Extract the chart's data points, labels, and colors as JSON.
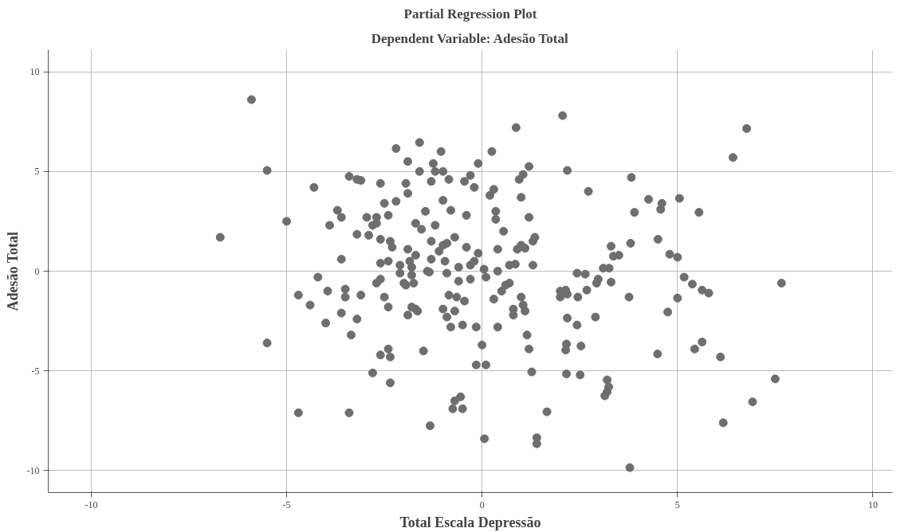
{
  "chart_data": {
    "type": "scatter",
    "title": "Partial Regression Plot",
    "subtitle": "Dependent Variable: Adesão Total",
    "xlabel": "Total Escala Depressão",
    "ylabel": "Adesão Total",
    "xlim": [
      -11.1,
      10.5
    ],
    "ylim": [
      -11.1,
      11.1
    ],
    "xticks": [
      -10,
      -5,
      0,
      5,
      10
    ],
    "yticks": [
      -10,
      -5,
      0,
      5,
      10
    ],
    "grid": true,
    "marker": "circle",
    "series": [
      {
        "color": "#6e6e6e",
        "x": [
          -6.7,
          -5.9,
          -5.5,
          -5.5,
          -5.0,
          -4.7,
          -4.7,
          -4.4,
          -4.3,
          -4.2,
          -4.0,
          -3.95,
          -3.9,
          -3.7,
          -3.6,
          -3.6,
          -3.6,
          -3.5,
          -3.5,
          -3.4,
          -3.4,
          -3.35,
          -3.2,
          -3.2,
          -3.1,
          -3.2,
          -3.1,
          -2.95,
          -2.9,
          -2.8,
          -2.8,
          -2.7,
          -2.7,
          -2.7,
          -2.6,
          -2.6,
          -2.6,
          -2.6,
          -2.6,
          -2.5,
          -2.5,
          -2.4,
          -2.4,
          -2.4,
          -2.4,
          -2.35,
          -2.35,
          -2.35,
          -2.3,
          -2.2,
          -2.2,
          -2.1,
          -2.1,
          -2.0,
          -1.95,
          -1.95,
          -1.9,
          -1.9,
          -1.9,
          -1.9,
          -1.85,
          -1.8,
          -1.8,
          -1.8,
          -1.75,
          -1.7,
          -1.7,
          -1.7,
          -1.65,
          -1.6,
          -1.6,
          -1.55,
          -1.5,
          -1.45,
          -1.4,
          -1.35,
          -1.3,
          -1.3,
          -1.3,
          -1.25,
          -1.2,
          -1.2,
          -1.1,
          -1.33,
          -1.05,
          -1.0,
          -1.0,
          -1.0,
          -1.0,
          -0.95,
          -0.9,
          -0.9,
          -0.9,
          -0.85,
          -0.85,
          -0.8,
          -0.8,
          -0.75,
          -0.7,
          -0.7,
          -0.7,
          -0.65,
          -0.6,
          -0.6,
          -0.55,
          -0.5,
          -0.5,
          -0.45,
          -0.45,
          -0.4,
          -0.4,
          -0.3,
          -0.3,
          -0.3,
          -0.2,
          -0.2,
          -0.15,
          -0.15,
          -0.1,
          -0.1,
          0.0,
          0.05,
          0.1,
          0.1,
          0.2,
          0.3,
          0.3,
          0.35,
          0.35,
          0.4,
          0.4,
          0.4,
          0.06,
          0.5,
          0.55,
          0.6,
          0.7,
          0.7,
          0.25,
          0.8,
          0.8,
          0.85,
          0.9,
          0.95,
          1.0,
          1.0,
          1.05,
          1.0,
          1.05,
          1.1,
          1.1,
          1.15,
          1.2,
          1.2,
          1.2,
          1.3,
          1.27,
          1.3,
          1.35,
          2.06,
          0.87,
          2.18,
          2.72,
          3.82,
          4.26,
          4.57,
          4.6,
          3.9,
          5.55,
          5.05,
          6.42,
          6.77,
          4.5,
          4.8,
          5.0,
          3.8,
          3.36,
          3.3,
          3.5,
          3.1,
          3.25,
          3.3,
          2.93,
          2.97,
          2.68,
          2.64,
          2.43,
          2.45,
          2.0,
          2.14,
          2.0,
          2.18,
          2.18,
          2.43,
          2.9,
          3.76,
          4.75,
          5.0,
          5.17,
          5.38,
          5.63,
          5.8,
          7.5,
          7.66,
          6.92,
          6.1,
          6.17,
          5.44,
          5.63,
          4.49,
          3.2,
          3.24,
          3.2,
          3.14,
          2.16,
          2.14,
          2.16,
          2.53,
          2.51,
          3.78,
          1.66,
          1.4,
          1.4
        ],
        "values": [
          1.7,
          8.6,
          5.05,
          -3.6,
          2.5,
          -1.2,
          -7.1,
          -1.7,
          4.2,
          -0.3,
          -2.6,
          -1.0,
          2.3,
          3.05,
          0.6,
          2.7,
          -2.1,
          -0.9,
          -1.3,
          4.75,
          -7.1,
          -3.2,
          -2.4,
          4.6,
          4.55,
          1.85,
          -1.2,
          2.7,
          1.8,
          -5.1,
          2.3,
          2.4,
          2.7,
          -0.6,
          4.4,
          -0.4,
          -4.2,
          0.4,
          1.6,
          3.4,
          -1.3,
          -1.8,
          -3.9,
          0.5,
          2.8,
          1.5,
          -4.3,
          -5.6,
          1.2,
          6.15,
          3.5,
          -0.1,
          0.3,
          -0.6,
          -0.7,
          4.4,
          3.9,
          5.5,
          1.1,
          -2.2,
          0.5,
          0.2,
          -0.2,
          -1.8,
          -0.6,
          0.8,
          2.4,
          -1.9,
          -2.0,
          6.45,
          5.0,
          2.1,
          -4.0,
          3.0,
          0.0,
          -0.05,
          1.5,
          4.5,
          0.6,
          5.4,
          5.0,
          2.3,
          1.0,
          -7.75,
          6.0,
          3.55,
          5.0,
          -1.9,
          1.3,
          0.5,
          -0.1,
          -2.3,
          1.4,
          4.6,
          -1.2,
          -2.8,
          3.05,
          -6.9,
          -2.0,
          1.7,
          -6.5,
          -1.3,
          -0.5,
          0.2,
          -6.3,
          -2.7,
          -6.9,
          4.5,
          -1.5,
          2.8,
          1.2,
          0.3,
          -0.4,
          4.8,
          4.2,
          0.5,
          -4.7,
          -2.8,
          0.9,
          5.4,
          -3.7,
          0.1,
          -4.7,
          -0.3,
          3.8,
          4.1,
          -1.4,
          2.6,
          3.0,
          1.1,
          0.0,
          -2.8,
          -8.4,
          -1.0,
          2.0,
          -0.7,
          -0.6,
          0.3,
          6.0,
          -2.2,
          -1.9,
          0.35,
          1.1,
          4.6,
          -1.3,
          1.3,
          -1.7,
          3.7,
          4.85,
          1.15,
          -2.0,
          -3.2,
          2.7,
          5.25,
          -3.9,
          1.5,
          -5.05,
          0.3,
          1.7,
          7.8,
          7.2,
          5.05,
          4.0,
          4.7,
          3.6,
          3.1,
          3.4,
          2.95,
          2.95,
          3.65,
          5.7,
          7.15,
          1.6,
          0.85,
          0.7,
          1.4,
          0.75,
          1.25,
          0.8,
          0.15,
          0.15,
          -0.55,
          -0.6,
          -0.4,
          -0.95,
          -0.15,
          -0.1,
          -1.3,
          -1.0,
          -0.95,
          -1.3,
          -1.15,
          -2.35,
          -2.7,
          -2.3,
          -1.3,
          -2.05,
          -1.35,
          -0.3,
          -0.65,
          -0.95,
          -1.1,
          -5.4,
          -0.6,
          -6.55,
          -4.3,
          -7.6,
          -3.9,
          -3.55,
          -4.15,
          -5.45,
          -5.8,
          -6.05,
          -6.25,
          -3.65,
          -3.95,
          -5.15,
          -3.75,
          -5.2,
          -9.85,
          -7.05,
          -8.35,
          -8.65
        ]
      }
    ]
  }
}
